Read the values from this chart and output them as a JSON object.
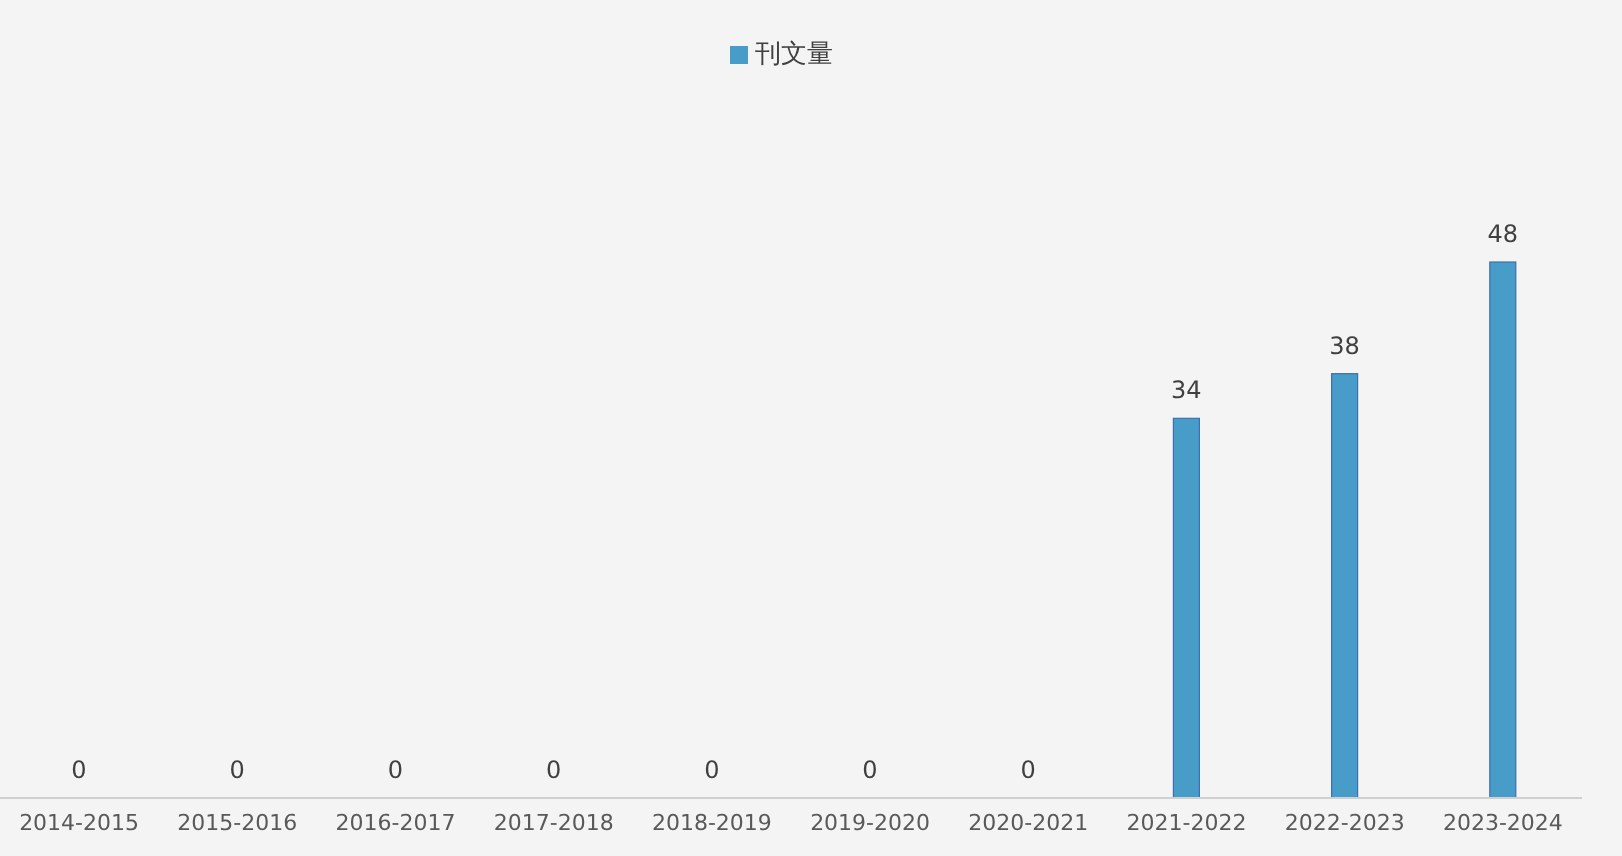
{
  "chart_data": {
    "type": "bar",
    "categories": [
      "2014-2015",
      "2015-2016",
      "2016-2017",
      "2017-2018",
      "2018-2019",
      "2019-2020",
      "2020-2021",
      "2021-2022",
      "2022-2023",
      "2023-2024"
    ],
    "series": [
      {
        "name": "刊文量",
        "color": "#479cc8",
        "values": [
          0,
          0,
          0,
          0,
          0,
          0,
          0,
          34,
          38,
          48
        ]
      }
    ],
    "data_labels": true,
    "legend": "top",
    "grid": false
  }
}
